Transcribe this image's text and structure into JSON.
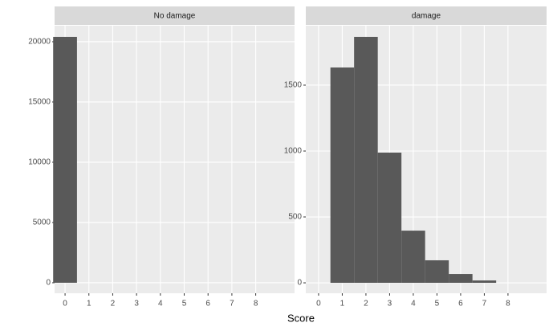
{
  "chart_data": {
    "type": "histogram",
    "xlabel": "Score",
    "color": "#595959",
    "facets": [
      {
        "title": "No damage",
        "bins": [
          -0.5,
          0.5
        ],
        "values": [
          20400
        ],
        "xlim": [
          -0.44,
          9.63
        ],
        "xticks": [
          0,
          1,
          2,
          3,
          4,
          5,
          6,
          7,
          8
        ],
        "ylim": [
          -870,
          21330
        ],
        "yticks": [
          0,
          5000,
          10000,
          15000,
          20000
        ]
      },
      {
        "title": "damage",
        "bins": [
          0.5,
          1.5,
          2.5,
          3.5,
          4.5,
          5.5,
          6.5,
          7.5
        ],
        "values": [
          1634,
          1866,
          988,
          396,
          171,
          67,
          18
        ],
        "xlim": [
          -0.54,
          9.63
        ],
        "xticks": [
          0,
          1,
          2,
          3,
          4,
          5,
          6,
          7,
          8
        ],
        "ylim": [
          -79,
          1951
        ],
        "yticks": [
          0,
          500,
          1000,
          1500
        ]
      }
    ],
    "grid": true
  }
}
